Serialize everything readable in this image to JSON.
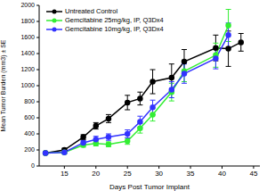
{
  "chart_data": {
    "type": "line",
    "xlabel": "Days Post Tumor Implant",
    "ylabel": "Mean Tumor Burden (mm3) ± SE",
    "xlim": [
      11,
      46
    ],
    "xticks": [
      15,
      20,
      25,
      30,
      35,
      40,
      45
    ],
    "ylim": [
      0,
      2000
    ],
    "yticks": [
      0,
      200,
      400,
      600,
      800,
      1000,
      1200,
      1400,
      1600,
      1800,
      2000
    ],
    "grid": false,
    "legend": "upper left",
    "series": [
      {
        "name": "Untreated Control",
        "color": "#000000",
        "marker": "circle",
        "x": [
          12,
          15,
          18,
          20,
          22,
          25,
          27,
          29,
          32,
          34,
          39,
          41,
          43
        ],
        "values": [
          160,
          200,
          360,
          500,
          590,
          790,
          840,
          1050,
          1100,
          1300,
          1470,
          1460,
          1540
        ],
        "error": [
          15,
          20,
          30,
          40,
          50,
          90,
          80,
          150,
          170,
          150,
          160,
          220,
          110
        ]
      },
      {
        "name": "Gemcitabine 25mg/kg, IP, Q3Dx4",
        "color": "#33ee33",
        "marker": "circle",
        "x": [
          12,
          15,
          18,
          20,
          22,
          25,
          27,
          29,
          32,
          34,
          39,
          41
        ],
        "values": [
          160,
          170,
          260,
          280,
          270,
          310,
          470,
          640,
          920,
          1180,
          1380,
          1750
        ],
        "error": [
          10,
          15,
          25,
          30,
          30,
          40,
          60,
          80,
          110,
          130,
          150,
          200
        ]
      },
      {
        "name": "Gemcitabine 10mg/kg, IP, Q3Dx4",
        "color": "#3333ff",
        "marker": "circle",
        "x": [
          12,
          15,
          18,
          20,
          22,
          25,
          27,
          29,
          32,
          34,
          39,
          41
        ],
        "values": [
          160,
          170,
          290,
          330,
          360,
          400,
          550,
          730,
          950,
          1150,
          1340,
          1630
        ],
        "error": [
          10,
          15,
          25,
          40,
          40,
          50,
          70,
          90,
          100,
          120,
          130,
          150
        ]
      }
    ]
  }
}
